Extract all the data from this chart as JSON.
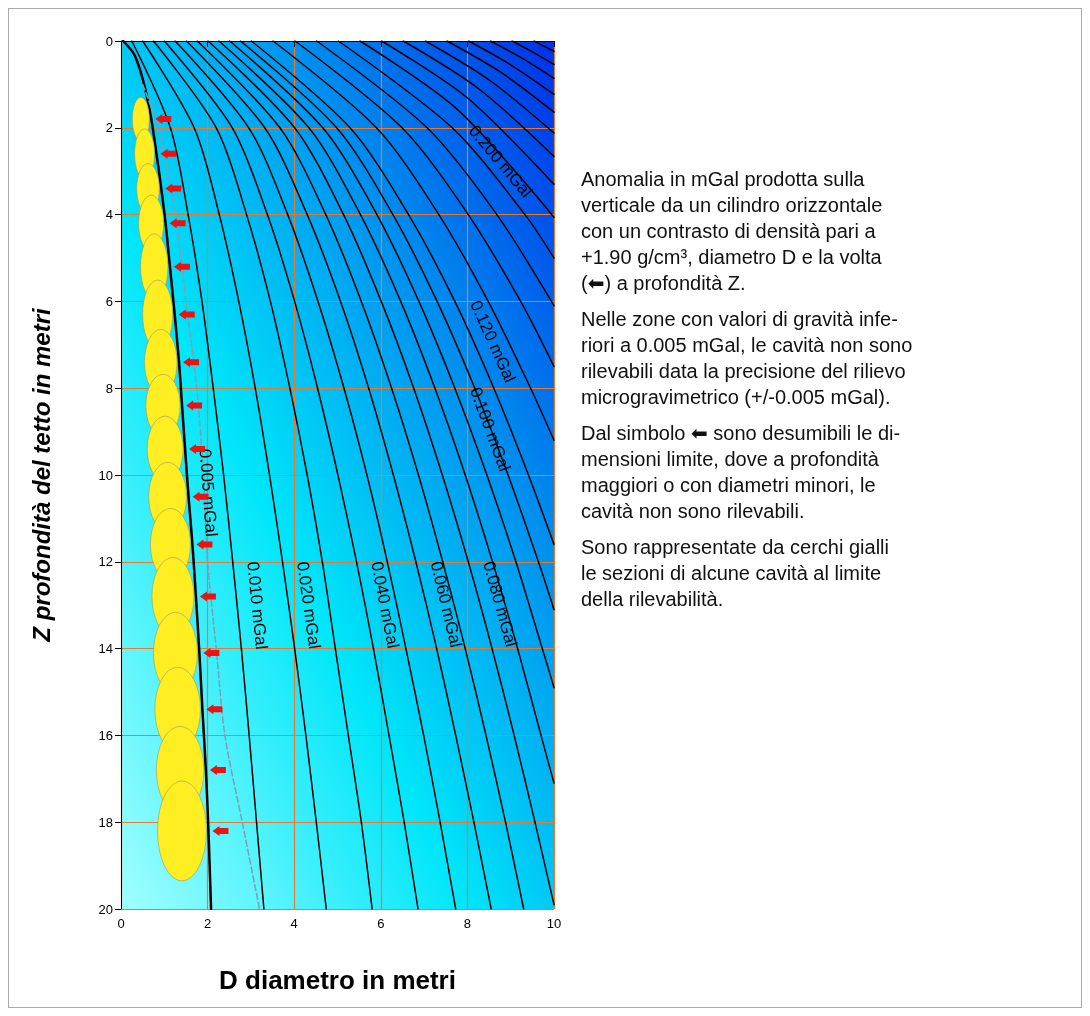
{
  "chart_data": {
    "type": "line",
    "xlabel": "D diametro in metri",
    "ylabel": "Z profondità del tetto in metri",
    "xlim": [
      0,
      10
    ],
    "ylim": [
      20,
      0
    ],
    "xticks": [
      0,
      2,
      4,
      6,
      8,
      10
    ],
    "yticks": [
      0,
      2,
      4,
      6,
      8,
      10,
      12,
      14,
      16,
      18,
      20
    ],
    "grid": true,
    "legend": false,
    "marker": "none",
    "line_style": "solid",
    "series": [
      {
        "name": "0.005 mGal",
        "color": "#000000",
        "x": [
          0.05,
          0.3,
          0.45,
          0.58,
          0.7,
          0.82,
          0.93,
          1.03,
          1.13,
          1.24,
          1.34,
          1.41,
          1.48,
          1.56,
          1.65,
          1.73,
          1.81,
          1.88,
          1.96,
          2.02,
          2.08
        ],
        "values": [
          0,
          0.3,
          0.7,
          1.2,
          1.8,
          2.6,
          3.4,
          4.2,
          5.2,
          6.3,
          7.4,
          8.4,
          9.4,
          10.5,
          11.6,
          12.8,
          14.1,
          15.4,
          16.8,
          18.2,
          20
        ]
      },
      {
        "color": "#7f9fb0",
        "line_style": "dashed",
        "x": [
          0.5,
          0.85,
          1.25,
          1.5,
          1.75,
          1.9,
          2.0,
          2.2,
          2.4,
          2.8,
          3.2
        ],
        "values": [
          1,
          2,
          4,
          6,
          8,
          10,
          12,
          14,
          16,
          18,
          20
        ]
      },
      {
        "name": "0.010 mGal",
        "color": "#000000",
        "x": [
          0.25,
          1.14,
          1.55,
          1.87,
          2.13,
          2.37,
          2.58,
          2.78,
          2.96,
          3.13,
          3.3
        ],
        "values": [
          0,
          2,
          4,
          6,
          8,
          10,
          12,
          14,
          16,
          18,
          20
        ]
      },
      {
        "name": "0.020 mGal",
        "color": "#000000",
        "x": [
          0.5,
          1.69,
          2.27,
          2.72,
          3.1,
          3.43,
          3.73,
          4.01,
          4.27,
          4.51,
          4.74
        ],
        "values": [
          0,
          2,
          4,
          6,
          8,
          10,
          12,
          14,
          16,
          18,
          20
        ]
      },
      {
        "color": "#000000",
        "x": [
          0.75,
          2.2,
          2.9,
          3.45,
          3.9,
          4.3,
          4.65,
          4.95,
          5.25,
          5.55,
          5.8
        ],
        "values": [
          0,
          2,
          4,
          6,
          8,
          10,
          12,
          14,
          16,
          18,
          20
        ]
      },
      {
        "name": "0.040 mGal",
        "color": "#000000",
        "x": [
          1.0,
          2.57,
          3.38,
          4.01,
          4.54,
          5.01,
          5.44,
          5.83,
          6.19,
          6.54,
          6.86
        ],
        "values": [
          0,
          2,
          4,
          6,
          8,
          10,
          12,
          14,
          16,
          18,
          20
        ]
      },
      {
        "color": "#000000",
        "x": [
          1.25,
          2.95,
          3.85,
          4.55,
          5.15,
          5.68,
          6.15,
          6.58,
          6.99,
          7.37,
          7.73
        ],
        "values": [
          0,
          2,
          4,
          6,
          8,
          10,
          12,
          14,
          16,
          18,
          20
        ]
      },
      {
        "name": "0.060 mGal",
        "color": "#000000",
        "x": [
          1.51,
          3.32,
          4.3,
          5.07,
          5.72,
          6.29,
          6.81,
          7.29,
          7.73,
          8.15,
          8.55
        ],
        "values": [
          0,
          2,
          4,
          6,
          8,
          10,
          12,
          14,
          16,
          18,
          20
        ]
      },
      {
        "color": "#000000",
        "x": [
          1.76,
          3.67,
          4.73,
          5.55,
          6.25,
          6.87,
          7.43,
          7.95,
          8.43,
          8.88,
          9.3
        ],
        "values": [
          0,
          2,
          4,
          6,
          8,
          10,
          12,
          14,
          16,
          18,
          20
        ]
      },
      {
        "name": "0.080 mGal",
        "color": "#000000",
        "x": [
          2.01,
          4.01,
          5.14,
          6.01,
          6.76,
          7.42,
          8.02,
          8.57,
          9.08,
          9.56,
          10
        ],
        "values": [
          0,
          2,
          4,
          6,
          8,
          10,
          12,
          14,
          16,
          18,
          19.9
        ]
      },
      {
        "color": "#000000",
        "x": [
          2.26,
          4.34,
          5.53,
          6.46,
          7.25,
          7.95,
          8.58,
          9.16,
          9.7,
          10
        ],
        "values": [
          0,
          2,
          4,
          6,
          8,
          10,
          12,
          14,
          16,
          17.1
        ]
      },
      {
        "name": "0.100 mGal",
        "color": "#000000",
        "x": [
          2.51,
          4.66,
          5.91,
          6.88,
          7.71,
          8.45,
          9.12,
          9.73,
          10
        ],
        "values": [
          0,
          2,
          4,
          6,
          8,
          10,
          12,
          14,
          14.9
        ]
      },
      {
        "color": "#000000",
        "x": [
          2.76,
          4.98,
          6.28,
          7.3,
          8.17,
          8.94,
          9.64,
          10
        ],
        "values": [
          0,
          2,
          4,
          6,
          8,
          10,
          12,
          13.1
        ]
      },
      {
        "name": "0.120 mGal",
        "color": "#000000",
        "x": [
          3.01,
          5.29,
          6.64,
          7.71,
          8.61,
          9.41,
          10
        ],
        "values": [
          0,
          2,
          4,
          6,
          8,
          10,
          11.6
        ]
      },
      {
        "color": "#000000",
        "x": [
          3.51,
          5.9,
          7.34,
          8.48,
          9.46,
          10
        ],
        "values": [
          0,
          2,
          4,
          6,
          8,
          9.2
        ]
      },
      {
        "color": "#000000",
        "x": [
          4.02,
          6.49,
          8.02,
          9.23,
          10
        ],
        "values": [
          0,
          2,
          4,
          6,
          7.5
        ]
      },
      {
        "color": "#000000",
        "x": [
          4.52,
          7.07,
          8.68,
          10
        ],
        "values": [
          0,
          2,
          4,
          6.1
        ]
      },
      {
        "name": "0.200 mGal",
        "color": "#000000",
        "x": [
          5.02,
          7.65,
          9.33,
          10
        ],
        "values": [
          0,
          2,
          4,
          5.0
        ]
      },
      {
        "color": "#000000",
        "x": [
          5.52,
          7.76,
          10
        ],
        "values": [
          0,
          1.57,
          4.06
        ]
      },
      {
        "color": "#000000",
        "x": [
          6.02,
          8.01,
          10
        ],
        "values": [
          0,
          1.32,
          3.3
        ]
      },
      {
        "color": "#000000",
        "x": [
          6.52,
          8.26,
          10
        ],
        "values": [
          0,
          1.1,
          2.66
        ]
      },
      {
        "color": "#000000",
        "x": [
          7.03,
          8.52,
          10
        ],
        "values": [
          0,
          0.91,
          2.12
        ]
      },
      {
        "color": "#000000",
        "x": [
          7.53,
          8.77,
          10
        ],
        "values": [
          0,
          0.72,
          1.64
        ]
      },
      {
        "color": "#000000",
        "x": [
          8.03,
          9.02,
          10
        ],
        "values": [
          0,
          0.56,
          1.23
        ]
      },
      {
        "color": "#000000",
        "x": [
          8.53,
          9.27,
          10
        ],
        "values": [
          0,
          0.4,
          0.86
        ]
      },
      {
        "color": "#000000",
        "x": [
          9.03,
          9.52,
          10
        ],
        "values": [
          0,
          0.26,
          0.54
        ]
      },
      {
        "color": "#000000",
        "x": [
          9.54,
          10
        ],
        "values": [
          0,
          0.24
        ]
      }
    ],
    "annotations": [
      "Anomalia in mGal prodotta sulla\nverticale da un cilindro orizzontale\ncon un contrasto di densità pari a\n+1.90 g/cm³, diametro D e la volta\n(⬅) a profondità Z.",
      "Nelle zone con valori di gravità infe-\nriori a 0.005 mGal, le cavità non sono\nrilevabili data la precisione del rilievo\nmicrogravimetrico (+/-0.005 mGal).",
      "Dal simbolo ⬅  sono desumibili le di-\nmensioni limite, dove a profondità\nmaggiori o con diametri minori,  le\ncavità non sono rilevabili.",
      "Sono rappresentate da cerchi gialli\nle sezioni di alcune cavità al limite\ndella rilevabilità."
    ]
  }
}
